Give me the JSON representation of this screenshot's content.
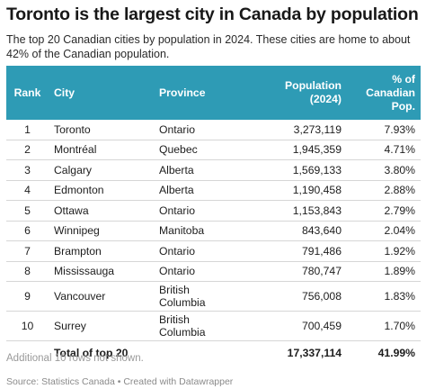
{
  "title": "Toronto is the largest city in Canada by population",
  "subtitle": "The top 20 Canadian cities by population in 2024. These cities are home to about 42% of the Canadian population.",
  "table": {
    "headers": {
      "rank": "Rank",
      "city": "City",
      "province": "Province",
      "population_line1": "Population",
      "population_line2": "(2024)",
      "pct_line1": "% of",
      "pct_line2": "Canadian",
      "pct_line3": "Pop."
    },
    "rows": [
      {
        "rank": "1",
        "city": "Toronto",
        "province_line1": "Ontario",
        "province_line2": "",
        "population": "3,273,119",
        "pct": "7.93%"
      },
      {
        "rank": "2",
        "city": "Montréal",
        "province_line1": "Quebec",
        "province_line2": "",
        "population": "1,945,359",
        "pct": "4.71%"
      },
      {
        "rank": "3",
        "city": "Calgary",
        "province_line1": "Alberta",
        "province_line2": "",
        "population": "1,569,133",
        "pct": "3.80%"
      },
      {
        "rank": "4",
        "city": "Edmonton",
        "province_line1": "Alberta",
        "province_line2": "",
        "population": "1,190,458",
        "pct": "2.88%"
      },
      {
        "rank": "5",
        "city": "Ottawa",
        "province_line1": "Ontario",
        "province_line2": "",
        "population": "1,153,843",
        "pct": "2.79%"
      },
      {
        "rank": "6",
        "city": "Winnipeg",
        "province_line1": "Manitoba",
        "province_line2": "",
        "population": "843,640",
        "pct": "2.04%"
      },
      {
        "rank": "7",
        "city": "Brampton",
        "province_line1": "Ontario",
        "province_line2": "",
        "population": "791,486",
        "pct": "1.92%"
      },
      {
        "rank": "8",
        "city": "Mississauga",
        "province_line1": "Ontario",
        "province_line2": "",
        "population": "780,747",
        "pct": "1.89%"
      },
      {
        "rank": "9",
        "city": "Vancouver",
        "province_line1": "British",
        "province_line2": "Columbia",
        "population": "756,008",
        "pct": "1.83%"
      },
      {
        "rank": "10",
        "city": "Surrey",
        "province_line1": "British",
        "province_line2": "Columbia",
        "population": "700,459",
        "pct": "1.70%"
      }
    ],
    "total": {
      "label": "Total of top 20",
      "population": "17,337,114",
      "pct": "41.99%"
    }
  },
  "note": "Additional 10 rows not shown.",
  "footer": "Source: Statistics Canada • Created with Datawrapper",
  "colors": {
    "header_bg": "#2e9bb5",
    "header_text": "#ffffff"
  }
}
